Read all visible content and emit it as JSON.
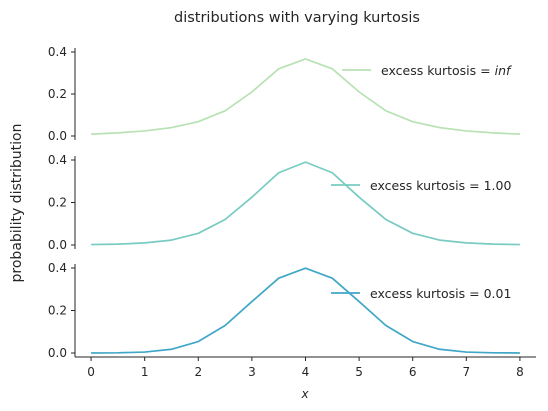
{
  "chart_data": {
    "type": "line",
    "title": "distributions with varying kurtosis",
    "xlabel": "x",
    "ylabel": "probability distribution",
    "xlim": [
      -0.3,
      8.3
    ],
    "xticks": [
      "0",
      "1",
      "2",
      "3",
      "4",
      "5",
      "6",
      "7",
      "8"
    ],
    "legend_position": "right",
    "panels": [
      {
        "legend": "excess kurtosis = inf",
        "legend_prefix": "excess kurtosis",
        "legend_value": "inf",
        "color": "#b8e2b4",
        "ylim": [
          0,
          0.4
        ],
        "yticks": [
          "0.0",
          "0.2",
          "0.4"
        ],
        "x": [
          0,
          0.5,
          1,
          1.5,
          2,
          2.5,
          3,
          3.5,
          4,
          4.5,
          5,
          5.5,
          6,
          6.5,
          7,
          7.5,
          8
        ],
        "y": [
          0.009,
          0.015,
          0.024,
          0.04,
          0.068,
          0.12,
          0.21,
          0.32,
          0.367,
          0.32,
          0.21,
          0.12,
          0.068,
          0.04,
          0.024,
          0.015,
          0.009
        ]
      },
      {
        "legend": "excess kurtosis = 1.00",
        "legend_prefix": "excess kurtosis",
        "legend_value": "1.00",
        "color": "#78cbc2",
        "ylim": [
          0,
          0.4
        ],
        "yticks": [
          "0.0",
          "0.2",
          "0.4"
        ],
        "x": [
          0,
          0.5,
          1,
          1.5,
          2,
          2.5,
          3,
          3.5,
          4,
          4.5,
          5,
          5.5,
          6,
          6.5,
          7,
          7.5,
          8
        ],
        "y": [
          0.002,
          0.004,
          0.01,
          0.023,
          0.055,
          0.12,
          0.225,
          0.34,
          0.39,
          0.34,
          0.225,
          0.12,
          0.055,
          0.023,
          0.01,
          0.004,
          0.002
        ]
      },
      {
        "legend": "excess kurtosis = 0.01",
        "legend_prefix": "excess kurtosis",
        "legend_value": "0.01",
        "color": "#41a7c8",
        "ylim": [
          0,
          0.4
        ],
        "yticks": [
          "0.0",
          "0.2",
          "0.4"
        ],
        "x": [
          0,
          0.5,
          1,
          1.5,
          2,
          2.5,
          3,
          3.5,
          4,
          4.5,
          5,
          5.5,
          6,
          6.5,
          7,
          7.5,
          8
        ],
        "y": [
          0.0001,
          0.0009,
          0.0045,
          0.0175,
          0.054,
          0.1295,
          0.242,
          0.352,
          0.399,
          0.352,
          0.242,
          0.1295,
          0.054,
          0.0175,
          0.0045,
          0.0009,
          0.0001
        ]
      }
    ]
  }
}
